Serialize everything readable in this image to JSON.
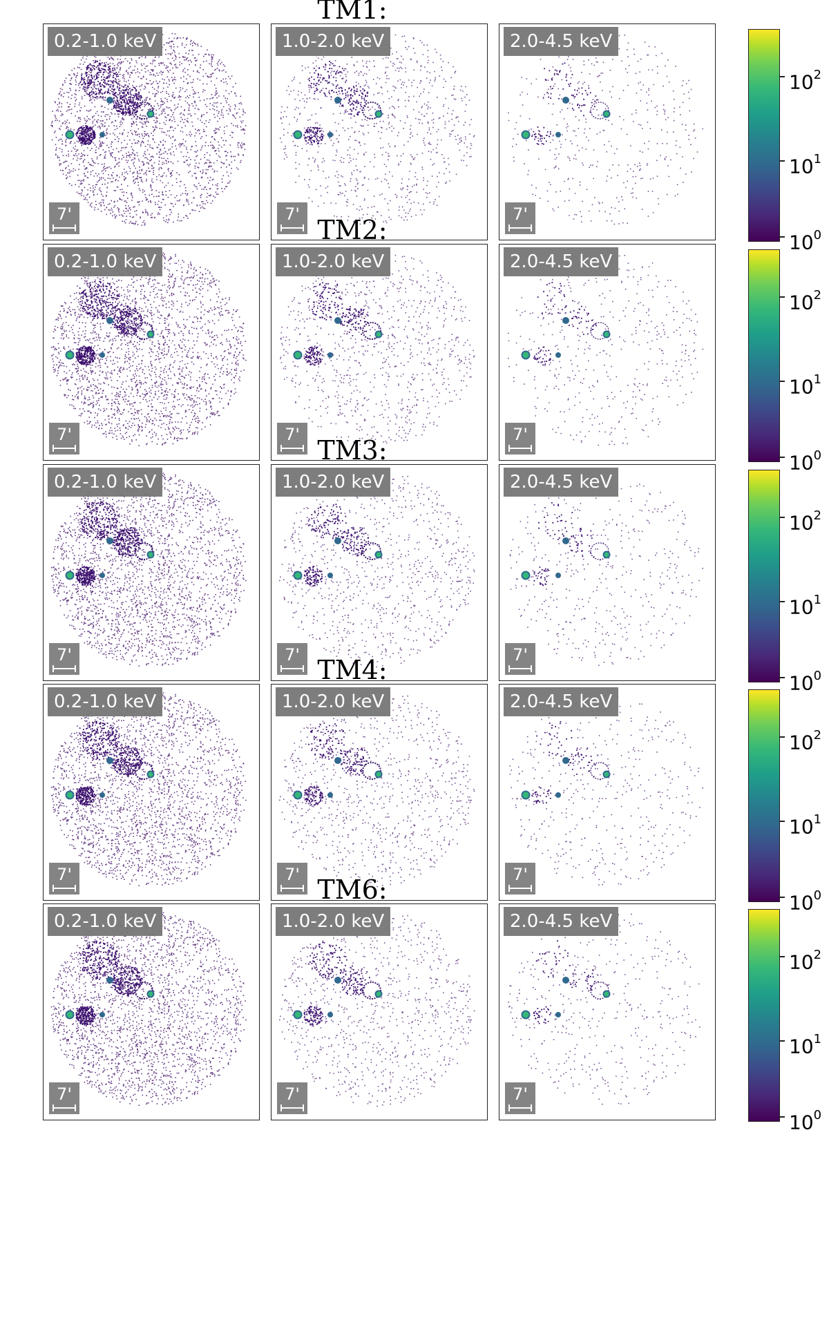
{
  "rows": [
    {
      "title": "TM1:",
      "bands": [
        "0.2-1.0 keV",
        "1.0-2.0 keV",
        "2.0-4.5 keV"
      ],
      "scalebar": "7'"
    },
    {
      "title": "TM2:",
      "bands": [
        "0.2-1.0 keV",
        "1.0-2.0 keV",
        "2.0-4.5 keV"
      ],
      "scalebar": "7'"
    },
    {
      "title": "TM3:",
      "bands": [
        "0.2-1.0 keV",
        "1.0-2.0 keV",
        "2.0-4.5 keV"
      ],
      "scalebar": "7'"
    },
    {
      "title": "TM4:",
      "bands": [
        "0.2-1.0 keV",
        "1.0-2.0 keV",
        "2.0-4.5 keV"
      ],
      "scalebar": "7'"
    },
    {
      "title": "TM6:",
      "bands": [
        "0.2-1.0 keV",
        "1.0-2.0 keV",
        "2.0-4.5 keV"
      ],
      "scalebar": "7'"
    }
  ],
  "colorbar": {
    "base": "10",
    "exponents": [
      "0",
      "1",
      "2"
    ],
    "colormap": "viridis",
    "scale": "log",
    "range": [
      1,
      400
    ]
  },
  "colors": {
    "label_bg": "#777777",
    "dot_low": "#4b1d6f",
    "dot_mid": "#31688e",
    "dot_high": "#35b779"
  }
}
